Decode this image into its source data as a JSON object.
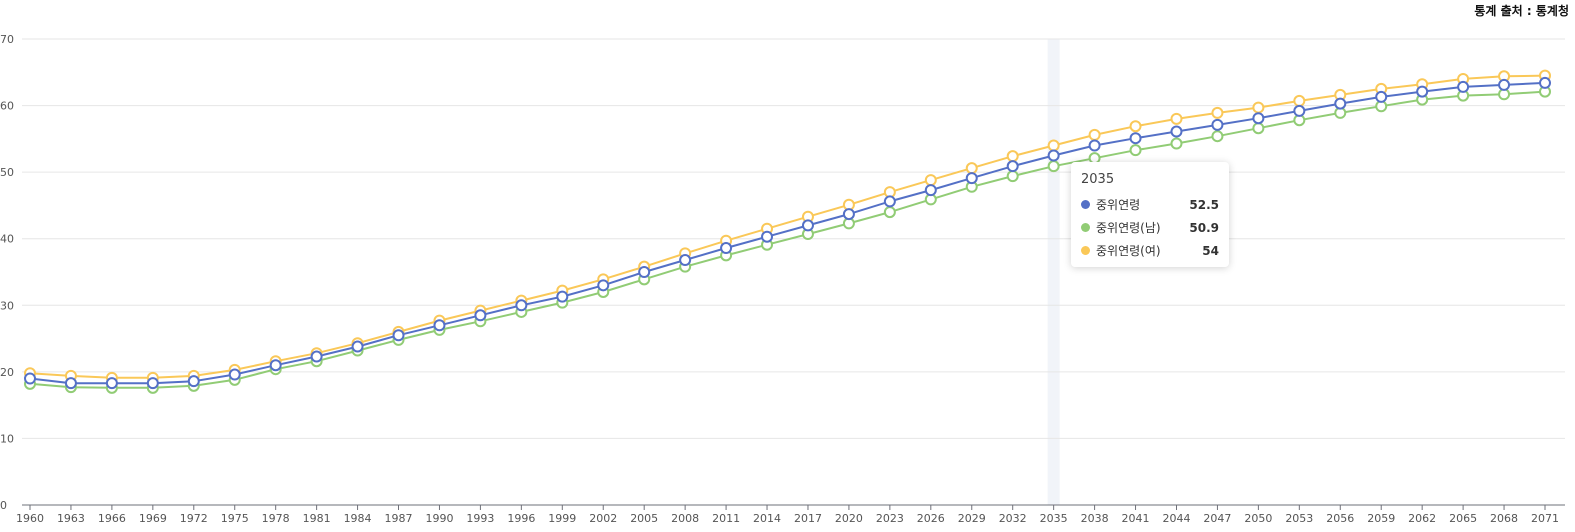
{
  "source_note": "통계 출처 : 통계청",
  "chart_data": {
    "type": "line",
    "title": "",
    "xlabel": "",
    "ylabel": "",
    "ylim": [
      0,
      70
    ],
    "yticks": [
      0,
      10,
      20,
      30,
      40,
      50,
      60,
      70
    ],
    "grid": true,
    "x": [
      1960,
      1963,
      1966,
      1969,
      1972,
      1975,
      1978,
      1981,
      1984,
      1987,
      1990,
      1993,
      1996,
      1999,
      2002,
      2005,
      2008,
      2011,
      2014,
      2017,
      2020,
      2023,
      2026,
      2029,
      2032,
      2035,
      2038,
      2041,
      2044,
      2047,
      2050,
      2053,
      2056,
      2059,
      2062,
      2065,
      2068,
      2071
    ],
    "series": [
      {
        "name": "중위연령",
        "color": "#5470c6",
        "values": [
          19.0,
          18.3,
          18.3,
          18.3,
          18.6,
          19.6,
          21.0,
          22.3,
          23.8,
          25.5,
          27.0,
          28.5,
          30.0,
          31.3,
          33.0,
          35.0,
          36.8,
          38.6,
          40.3,
          42.0,
          43.7,
          45.6,
          47.3,
          49.1,
          50.9,
          52.5,
          54.0,
          55.1,
          56.1,
          57.1,
          58.1,
          59.2,
          60.3,
          61.3,
          62.1,
          62.8,
          63.1,
          63.4
        ]
      },
      {
        "name": "중위연령(남)",
        "color": "#91cc75",
        "values": [
          18.2,
          17.7,
          17.6,
          17.6,
          17.9,
          18.8,
          20.4,
          21.6,
          23.2,
          24.8,
          26.3,
          27.6,
          29.0,
          30.4,
          32.0,
          33.9,
          35.8,
          37.5,
          39.1,
          40.7,
          42.3,
          44.0,
          45.9,
          47.8,
          49.4,
          50.9,
          52.1,
          53.3,
          54.3,
          55.4,
          56.6,
          57.8,
          58.9,
          59.9,
          60.9,
          61.5,
          61.7,
          62.1
        ]
      },
      {
        "name": "중위연령(여)",
        "color": "#fac858",
        "values": [
          19.8,
          19.4,
          19.1,
          19.1,
          19.4,
          20.3,
          21.6,
          22.8,
          24.3,
          26.0,
          27.7,
          29.2,
          30.7,
          32.2,
          33.9,
          35.8,
          37.8,
          39.7,
          41.5,
          43.3,
          45.1,
          47.0,
          48.8,
          50.6,
          52.4,
          54.0,
          55.6,
          56.9,
          58.0,
          58.9,
          59.7,
          60.7,
          61.6,
          62.5,
          63.2,
          64.0,
          64.4,
          64.5
        ]
      }
    ],
    "highlight_x": 2035,
    "tooltip": {
      "title": "2035",
      "rows": [
        {
          "label": "중위연령",
          "value": "52.5",
          "color": "#5470c6"
        },
        {
          "label": "중위연령(남)",
          "value": "50.9",
          "color": "#91cc75"
        },
        {
          "label": "중위연령(여)",
          "value": "54",
          "color": "#fac858"
        }
      ]
    }
  }
}
